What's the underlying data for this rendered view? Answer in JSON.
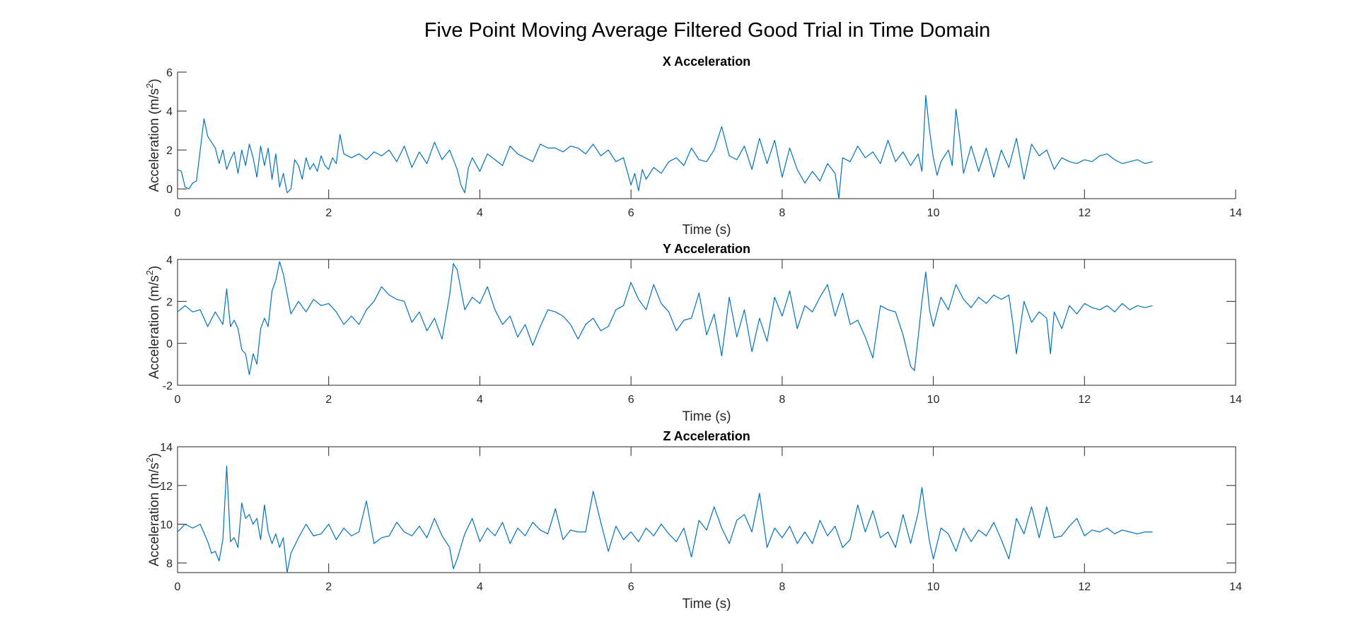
{
  "figure_title": "Five Point Moving Average Filtered Good Trial in Time Domain",
  "colors": {
    "series": "#0072BD",
    "axis": "#262626"
  },
  "chart_data": [
    {
      "type": "line",
      "title": "X Acceleration",
      "xlabel": "Time (s)",
      "ylabel_main": "Acceleration (m/s",
      "ylabel_sup": "2",
      "ylabel_close": ")",
      "xlim": [
        0,
        14
      ],
      "ylim": [
        -0.5,
        6
      ],
      "xticks": [
        0,
        2,
        4,
        6,
        8,
        10,
        12,
        14
      ],
      "yticks": [
        0,
        2,
        4,
        6
      ],
      "box": false,
      "grid": false,
      "series": [
        {
          "x": [
            0,
            0.05,
            0.1,
            0.15,
            0.2,
            0.25,
            0.3,
            0.35,
            0.4,
            0.45,
            0.5,
            0.55,
            0.6,
            0.65,
            0.7,
            0.75,
            0.8,
            0.85,
            0.9,
            0.95,
            1.0,
            1.05,
            1.1,
            1.15,
            1.2,
            1.25,
            1.3,
            1.35,
            1.4,
            1.45,
            1.5,
            1.55,
            1.6,
            1.65,
            1.7,
            1.75,
            1.8,
            1.85,
            1.9,
            1.95,
            2.0,
            2.05,
            2.1,
            2.15,
            2.2,
            2.3,
            2.4,
            2.5,
            2.6,
            2.7,
            2.8,
            2.9,
            3.0,
            3.1,
            3.2,
            3.3,
            3.4,
            3.5,
            3.6,
            3.7,
            3.75,
            3.8,
            3.85,
            3.9,
            4.0,
            4.1,
            4.2,
            4.3,
            4.4,
            4.5,
            4.6,
            4.7,
            4.8,
            4.9,
            5.0,
            5.1,
            5.2,
            5.3,
            5.4,
            5.5,
            5.6,
            5.7,
            5.8,
            5.9,
            6.0,
            6.05,
            6.1,
            6.15,
            6.2,
            6.3,
            6.4,
            6.5,
            6.6,
            6.7,
            6.8,
            6.9,
            7.0,
            7.1,
            7.2,
            7.3,
            7.4,
            7.5,
            7.6,
            7.7,
            7.8,
            7.9,
            8.0,
            8.1,
            8.2,
            8.3,
            8.4,
            8.5,
            8.6,
            8.7,
            8.75,
            8.8,
            8.9,
            9.0,
            9.1,
            9.2,
            9.3,
            9.4,
            9.5,
            9.6,
            9.7,
            9.8,
            9.85,
            9.9,
            9.95,
            10.0,
            10.05,
            10.1,
            10.2,
            10.25,
            10.3,
            10.35,
            10.4,
            10.5,
            10.6,
            10.7,
            10.8,
            10.9,
            11.0,
            11.1,
            11.2,
            11.3,
            11.4,
            11.5,
            11.6,
            11.7,
            11.8,
            11.9,
            12.0,
            12.1,
            12.2,
            12.3,
            12.4,
            12.5,
            12.6,
            12.7,
            12.8,
            12.9
          ],
          "y": [
            1.0,
            0.9,
            0.1,
            0.0,
            0.3,
            0.4,
            2.0,
            3.6,
            2.7,
            2.4,
            2.1,
            1.3,
            2.0,
            1.0,
            1.5,
            1.9,
            0.8,
            2.0,
            1.2,
            2.3,
            1.6,
            0.6,
            2.2,
            1.2,
            2.1,
            0.5,
            1.8,
            0.1,
            0.8,
            -0.2,
            0.0,
            1.5,
            1.2,
            0.5,
            1.6,
            1.0,
            1.3,
            0.9,
            1.7,
            1.2,
            1.0,
            1.6,
            1.3,
            2.8,
            1.8,
            1.6,
            1.8,
            1.5,
            1.9,
            1.7,
            2.0,
            1.4,
            2.2,
            1.1,
            1.9,
            1.3,
            2.4,
            1.5,
            2.0,
            1.0,
            0.2,
            -0.2,
            1.1,
            1.6,
            0.9,
            1.8,
            1.5,
            1.2,
            2.2,
            1.8,
            1.6,
            1.4,
            2.3,
            2.1,
            2.1,
            1.9,
            2.2,
            2.1,
            1.8,
            2.3,
            1.7,
            2.0,
            1.4,
            1.6,
            0.2,
            0.8,
            -0.1,
            1.0,
            0.5,
            1.1,
            0.8,
            1.4,
            1.6,
            1.2,
            2.1,
            1.5,
            1.4,
            2.0,
            3.2,
            1.7,
            1.5,
            2.2,
            1.0,
            2.6,
            1.3,
            2.5,
            0.6,
            2.1,
            1.0,
            0.3,
            0.9,
            0.4,
            1.3,
            0.8,
            -0.5,
            1.6,
            1.4,
            2.2,
            1.6,
            1.9,
            1.3,
            2.5,
            1.4,
            1.9,
            1.2,
            1.8,
            0.9,
            4.8,
            3.0,
            1.6,
            0.7,
            1.4,
            2.0,
            1.2,
            4.1,
            2.6,
            0.8,
            2.2,
            0.9,
            2.1,
            0.6,
            2.0,
            1.1,
            2.6,
            0.5,
            2.3,
            1.7,
            2.0,
            1.0,
            1.6,
            1.4,
            1.3,
            1.5,
            1.4,
            1.7,
            1.8,
            1.5,
            1.3,
            1.4,
            1.5,
            1.3,
            1.4
          ]
        }
      ]
    },
    {
      "type": "line",
      "title": "Y Acceleration",
      "xlabel": "Time (s)",
      "ylabel_main": "Acceleration (m/s",
      "ylabel_sup": "2",
      "ylabel_close": ")",
      "xlim": [
        0,
        14
      ],
      "ylim": [
        -2,
        4
      ],
      "xticks": [
        0,
        2,
        4,
        6,
        8,
        10,
        12,
        14
      ],
      "yticks": [
        -2,
        0,
        2,
        4
      ],
      "box": true,
      "grid": false,
      "series": [
        {
          "x": [
            0,
            0.1,
            0.2,
            0.3,
            0.4,
            0.5,
            0.6,
            0.65,
            0.7,
            0.75,
            0.8,
            0.85,
            0.9,
            0.95,
            1.0,
            1.05,
            1.1,
            1.15,
            1.2,
            1.25,
            1.3,
            1.35,
            1.4,
            1.5,
            1.6,
            1.7,
            1.8,
            1.9,
            2.0,
            2.1,
            2.2,
            2.3,
            2.4,
            2.5,
            2.6,
            2.7,
            2.8,
            2.9,
            3.0,
            3.1,
            3.2,
            3.3,
            3.4,
            3.5,
            3.6,
            3.65,
            3.7,
            3.8,
            3.9,
            4.0,
            4.1,
            4.2,
            4.3,
            4.4,
            4.5,
            4.6,
            4.7,
            4.8,
            4.9,
            5.0,
            5.1,
            5.2,
            5.3,
            5.4,
            5.5,
            5.6,
            5.7,
            5.8,
            5.9,
            6.0,
            6.1,
            6.2,
            6.3,
            6.4,
            6.5,
            6.6,
            6.7,
            6.8,
            6.9,
            7.0,
            7.1,
            7.2,
            7.3,
            7.4,
            7.5,
            7.6,
            7.7,
            7.8,
            7.9,
            8.0,
            8.1,
            8.2,
            8.3,
            8.4,
            8.5,
            8.6,
            8.7,
            8.8,
            8.9,
            9.0,
            9.1,
            9.2,
            9.3,
            9.4,
            9.5,
            9.6,
            9.7,
            9.75,
            9.8,
            9.85,
            9.9,
            9.95,
            10.0,
            10.1,
            10.2,
            10.3,
            10.4,
            10.5,
            10.6,
            10.7,
            10.8,
            10.9,
            11.0,
            11.05,
            11.1,
            11.2,
            11.3,
            11.4,
            11.5,
            11.55,
            11.6,
            11.7,
            11.8,
            11.9,
            12.0,
            12.1,
            12.2,
            12.3,
            12.4,
            12.5,
            12.6,
            12.7,
            12.8,
            12.9
          ],
          "y": [
            1.5,
            1.8,
            1.5,
            1.6,
            0.8,
            1.5,
            0.9,
            2.6,
            0.8,
            1.1,
            0.7,
            -0.3,
            -0.5,
            -1.5,
            -0.5,
            -1.0,
            0.7,
            1.2,
            0.8,
            2.5,
            3.0,
            3.9,
            3.3,
            1.4,
            2.0,
            1.5,
            2.1,
            1.8,
            1.9,
            1.5,
            0.9,
            1.3,
            0.9,
            1.6,
            2.0,
            2.7,
            2.3,
            2.1,
            2.0,
            1.0,
            1.5,
            0.6,
            1.2,
            0.2,
            2.3,
            3.8,
            3.5,
            1.6,
            2.2,
            1.9,
            2.7,
            1.6,
            0.9,
            1.3,
            0.3,
            0.9,
            -0.1,
            0.8,
            1.6,
            1.5,
            1.3,
            0.9,
            0.2,
            0.9,
            1.2,
            0.6,
            0.8,
            1.6,
            1.8,
            2.9,
            2.1,
            1.6,
            2.8,
            1.9,
            1.5,
            0.6,
            1.1,
            1.2,
            2.4,
            0.4,
            1.4,
            -0.6,
            2.2,
            0.3,
            1.6,
            -0.4,
            1.2,
            0.1,
            2.2,
            1.3,
            2.5,
            0.7,
            1.8,
            1.5,
            2.2,
            2.8,
            1.3,
            2.4,
            0.9,
            1.1,
            0.3,
            -0.7,
            1.8,
            1.6,
            1.5,
            0.4,
            -1.1,
            -1.3,
            0.3,
            2.0,
            3.4,
            1.6,
            0.8,
            2.2,
            1.6,
            2.8,
            2.1,
            1.7,
            2.2,
            1.9,
            2.3,
            2.1,
            2.3,
            1.0,
            -0.5,
            2.0,
            1.0,
            1.5,
            1.2,
            -0.5,
            1.5,
            0.7,
            1.8,
            1.4,
            1.9,
            1.7,
            1.6,
            1.8,
            1.5,
            1.9,
            1.6,
            1.8,
            1.7,
            1.8
          ]
        }
      ]
    },
    {
      "type": "line",
      "title": "Z Acceleration",
      "xlabel": "Time (s)",
      "ylabel_main": "Acceleration (m/s",
      "ylabel_sup": "2",
      "ylabel_close": ")",
      "xlim": [
        0,
        14
      ],
      "ylim": [
        7.5,
        14
      ],
      "xticks": [
        0,
        2,
        4,
        6,
        8,
        10,
        12,
        14
      ],
      "yticks": [
        8,
        10,
        12,
        14
      ],
      "box": true,
      "grid": false,
      "series": [
        {
          "x": [
            0,
            0.1,
            0.2,
            0.3,
            0.4,
            0.45,
            0.5,
            0.55,
            0.6,
            0.65,
            0.7,
            0.75,
            0.8,
            0.85,
            0.9,
            0.95,
            1.0,
            1.05,
            1.1,
            1.15,
            1.2,
            1.25,
            1.3,
            1.35,
            1.4,
            1.45,
            1.5,
            1.6,
            1.7,
            1.8,
            1.9,
            2.0,
            2.1,
            2.2,
            2.3,
            2.4,
            2.5,
            2.6,
            2.7,
            2.8,
            2.9,
            3.0,
            3.1,
            3.2,
            3.3,
            3.4,
            3.5,
            3.6,
            3.65,
            3.7,
            3.8,
            3.9,
            4.0,
            4.1,
            4.2,
            4.3,
            4.4,
            4.5,
            4.6,
            4.7,
            4.8,
            4.9,
            5.0,
            5.1,
            5.2,
            5.3,
            5.4,
            5.5,
            5.6,
            5.7,
            5.8,
            5.9,
            6.0,
            6.1,
            6.2,
            6.3,
            6.4,
            6.5,
            6.6,
            6.7,
            6.8,
            6.9,
            7.0,
            7.1,
            7.2,
            7.3,
            7.4,
            7.5,
            7.6,
            7.7,
            7.8,
            7.9,
            8.0,
            8.1,
            8.2,
            8.3,
            8.4,
            8.5,
            8.6,
            8.7,
            8.8,
            8.9,
            9.0,
            9.1,
            9.2,
            9.3,
            9.4,
            9.5,
            9.6,
            9.7,
            9.8,
            9.85,
            9.9,
            9.95,
            10.0,
            10.1,
            10.2,
            10.3,
            10.4,
            10.5,
            10.6,
            10.7,
            10.8,
            10.9,
            11.0,
            11.1,
            11.2,
            11.3,
            11.4,
            11.5,
            11.6,
            11.7,
            11.8,
            11.9,
            12.0,
            12.1,
            12.2,
            12.3,
            12.4,
            12.5,
            12.6,
            12.7,
            12.8,
            12.9
          ],
          "y": [
            9.6,
            10.0,
            9.8,
            10.0,
            9.1,
            8.5,
            8.6,
            8.1,
            9.2,
            13.0,
            9.1,
            9.3,
            8.8,
            11.1,
            10.3,
            10.5,
            10.0,
            10.3,
            9.2,
            11.0,
            9.6,
            9.0,
            9.5,
            8.8,
            9.3,
            7.5,
            8.5,
            9.3,
            10.0,
            9.4,
            9.5,
            10.0,
            9.2,
            9.8,
            9.4,
            9.6,
            11.2,
            9.0,
            9.3,
            9.4,
            10.1,
            9.6,
            9.4,
            9.9,
            9.3,
            10.3,
            9.4,
            8.8,
            7.7,
            8.2,
            9.5,
            10.3,
            9.1,
            9.8,
            9.4,
            10.1,
            9.0,
            9.8,
            9.4,
            10.1,
            9.7,
            9.5,
            10.8,
            9.2,
            9.7,
            9.6,
            9.6,
            11.7,
            10.1,
            8.6,
            9.9,
            9.2,
            9.6,
            9.1,
            9.8,
            9.4,
            10.0,
            9.5,
            9.1,
            9.8,
            8.3,
            10.2,
            9.7,
            10.9,
            9.8,
            9.0,
            10.2,
            10.5,
            9.6,
            11.6,
            8.8,
            9.8,
            9.3,
            9.9,
            9.0,
            9.6,
            9.0,
            10.2,
            9.4,
            9.9,
            8.8,
            9.2,
            11.0,
            9.6,
            10.7,
            9.3,
            9.6,
            8.8,
            10.5,
            9.0,
            10.6,
            11.9,
            10.4,
            9.1,
            8.2,
            9.8,
            9.5,
            8.6,
            9.8,
            9.1,
            9.7,
            9.4,
            10.1,
            9.2,
            8.2,
            10.3,
            9.5,
            10.9,
            9.3,
            10.9,
            9.3,
            9.4,
            9.9,
            10.3,
            9.4,
            9.7,
            9.6,
            9.8,
            9.5,
            9.7,
            9.6,
            9.5,
            9.6,
            9.6
          ]
        }
      ]
    }
  ]
}
